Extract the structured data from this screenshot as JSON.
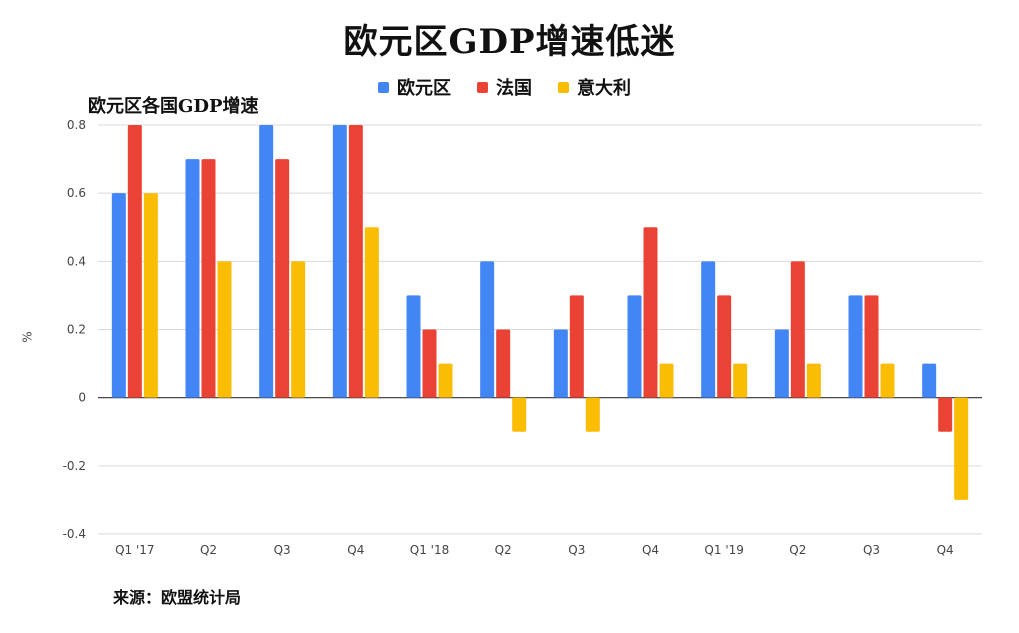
{
  "title": "欧元区GDP增速低迷",
  "subtitle": "欧元区各国GDP增速",
  "source": "来源：欧盟统计局",
  "chart_data": {
    "type": "bar",
    "ylabel": "%",
    "ylim": [
      -0.4,
      0.8
    ],
    "yticks": [
      "0.8",
      "0.6",
      "0.4",
      "0.2",
      "0",
      "-0.2",
      "-0.4"
    ],
    "grid": true,
    "legend_position": "top",
    "categories": [
      "Q1 '17",
      "Q2",
      "Q3",
      "Q4",
      "Q1 '18",
      "Q2",
      "Q3",
      "Q4",
      "Q1 '19",
      "Q2",
      "Q3",
      "Q4"
    ],
    "series": [
      {
        "name": "欧元区",
        "color": "#4285f4",
        "values": [
          0.6,
          0.7,
          0.8,
          0.8,
          0.3,
          0.4,
          0.2,
          0.3,
          0.4,
          0.2,
          0.3,
          0.1
        ]
      },
      {
        "name": "法国",
        "color": "#ea4335",
        "values": [
          0.8,
          0.7,
          0.7,
          0.8,
          0.2,
          0.2,
          0.3,
          0.5,
          0.3,
          0.4,
          0.3,
          -0.1
        ]
      },
      {
        "name": "意大利",
        "color": "#fbbc04",
        "values": [
          0.6,
          0.4,
          0.4,
          0.5,
          0.1,
          -0.1,
          -0.1,
          0.1,
          0.1,
          0.1,
          0.1,
          -0.3
        ]
      }
    ]
  }
}
